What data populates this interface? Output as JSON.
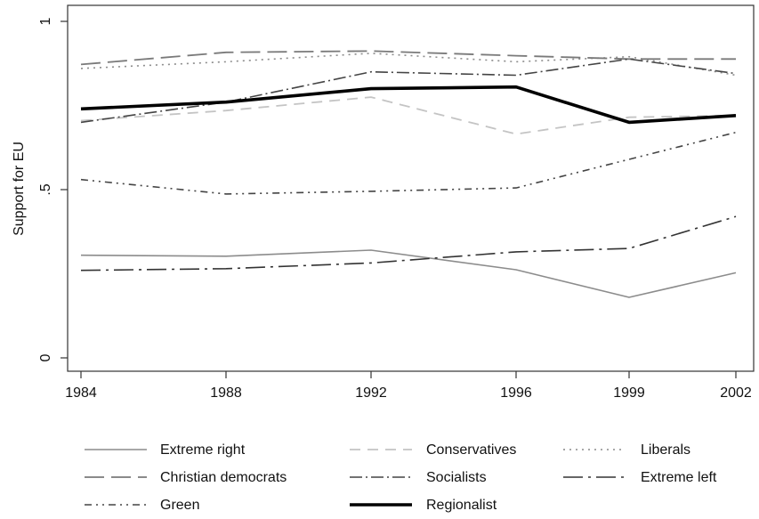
{
  "chart_data": {
    "type": "line",
    "title": "",
    "xlabel": "",
    "ylabel": "Support for EU",
    "x": [
      "1984",
      "1988",
      "1992",
      "1996",
      "1999",
      "2002"
    ],
    "ylim": [
      0,
      1
    ],
    "yticks": [
      {
        "value": 0,
        "label": "0"
      },
      {
        "value": 0.5,
        "label": ".5"
      },
      {
        "value": 1,
        "label": "1"
      }
    ],
    "grid": false,
    "legend_position": "bottom",
    "series": [
      {
        "name": "Extreme right",
        "values": [
          0.305,
          0.302,
          0.32,
          0.262,
          0.18,
          0.253
        ],
        "color": "#8c8c8c",
        "width": 1.6,
        "dash": ""
      },
      {
        "name": "Conservatives",
        "values": [
          0.705,
          0.735,
          0.775,
          0.665,
          0.715,
          0.72
        ],
        "color": "#c4c4c4",
        "width": 1.8,
        "dash": "12,8"
      },
      {
        "name": "Liberals",
        "values": [
          0.86,
          0.88,
          0.905,
          0.88,
          0.895,
          0.84
        ],
        "color": "#8c8c8c",
        "width": 1.6,
        "dash": "2,5"
      },
      {
        "name": "Christian democrats",
        "values": [
          0.872,
          0.908,
          0.912,
          0.898,
          0.888,
          0.888
        ],
        "color": "#7a7a7a",
        "width": 1.8,
        "dash": "22,8"
      },
      {
        "name": "Socialists",
        "values": [
          0.7,
          0.76,
          0.85,
          0.84,
          0.888,
          0.845
        ],
        "color": "#444444",
        "width": 1.6,
        "dash": "14,4,2,4"
      },
      {
        "name": "Extreme left",
        "values": [
          0.26,
          0.265,
          0.282,
          0.315,
          0.325,
          0.42
        ],
        "color": "#333333",
        "width": 1.6,
        "dash": "22,6,3,6"
      },
      {
        "name": "Green",
        "values": [
          0.53,
          0.487,
          0.495,
          0.505,
          0.59,
          0.67
        ],
        "color": "#444444",
        "width": 1.6,
        "dash": "8,5,2,5,2,5"
      },
      {
        "name": "Regionalist",
        "values": [
          0.74,
          0.76,
          0.8,
          0.805,
          0.7,
          0.72
        ],
        "color": "#000000",
        "width": 3.6,
        "dash": ""
      }
    ]
  }
}
